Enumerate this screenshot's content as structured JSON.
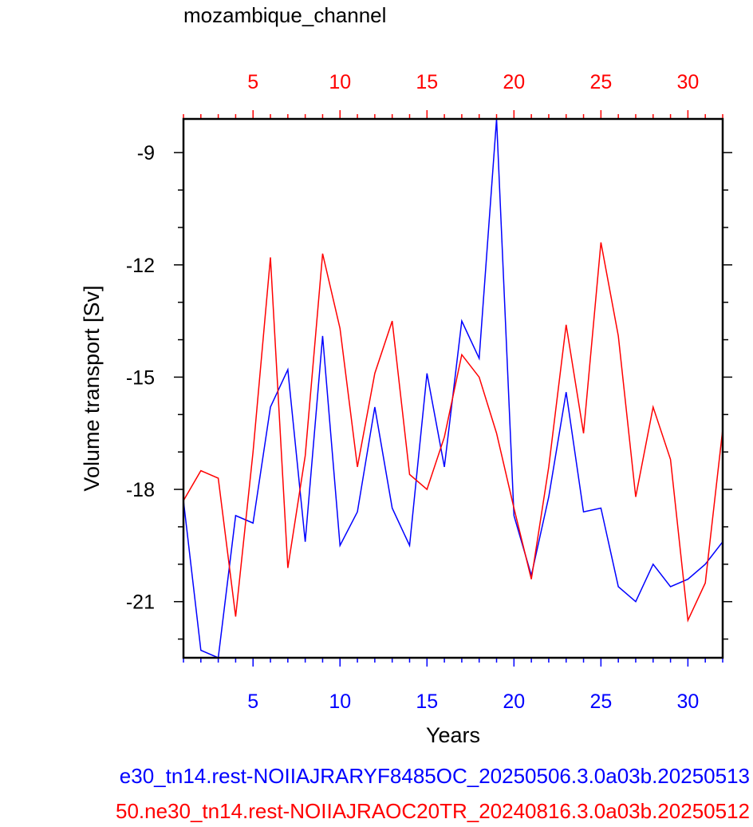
{
  "chart_data": {
    "type": "line",
    "title": "mozambique_channel",
    "xlabel": "Years",
    "ylabel": "Volume transport [Sv]",
    "xlim": [
      1,
      32
    ],
    "ylim": [
      -22.5,
      -8.1
    ],
    "x_ticks": [
      5,
      10,
      15,
      20,
      25,
      30
    ],
    "y_ticks": [
      -9,
      -12,
      -15,
      -18,
      -21
    ],
    "grid": false,
    "x": [
      1,
      2,
      3,
      4,
      5,
      6,
      7,
      8,
      9,
      10,
      11,
      12,
      13,
      14,
      15,
      16,
      17,
      18,
      19,
      20,
      21,
      22,
      23,
      24,
      25,
      26,
      27,
      28,
      29,
      30,
      31,
      32
    ],
    "series": [
      {
        "name": "e30_tn14.rest-NOIIAJRARYF8485OC_20250506.3.0a03b.20250513",
        "color": "#0000ff",
        "values": [
          -18.3,
          -22.3,
          -22.5,
          -18.7,
          -18.9,
          -15.8,
          -14.8,
          -19.4,
          -13.9,
          -19.5,
          -18.6,
          -15.8,
          -18.5,
          -19.5,
          -14.9,
          -17.4,
          -13.5,
          -14.5,
          -8.1,
          -18.7,
          -20.3,
          -18.2,
          -15.4,
          -18.6,
          -18.5,
          -20.6,
          -21.0,
          -20.0,
          -20.6,
          -20.4,
          -20.0,
          -19.4
        ]
      },
      {
        "name": "50.ne30_tn14.rest-NOIIAJRAOC20TR_20240816.3.0a03b.20250512",
        "color": "#ff0000",
        "values": [
          -18.3,
          -17.5,
          -17.7,
          -21.4,
          -17.0,
          -11.8,
          -20.1,
          -17.1,
          -11.7,
          -13.7,
          -17.4,
          -14.9,
          -13.5,
          -17.6,
          -18.0,
          -16.6,
          -14.4,
          -15.0,
          -16.5,
          -18.5,
          -20.4,
          -17.4,
          -13.6,
          -16.5,
          -11.4,
          -13.9,
          -18.2,
          -15.8,
          -17.2,
          -21.5,
          -20.5,
          -16.4
        ]
      }
    ]
  },
  "colors": {
    "axis": "#000000",
    "bottom_ticks": "#0000ff",
    "top_ticks": "#ff0000"
  }
}
